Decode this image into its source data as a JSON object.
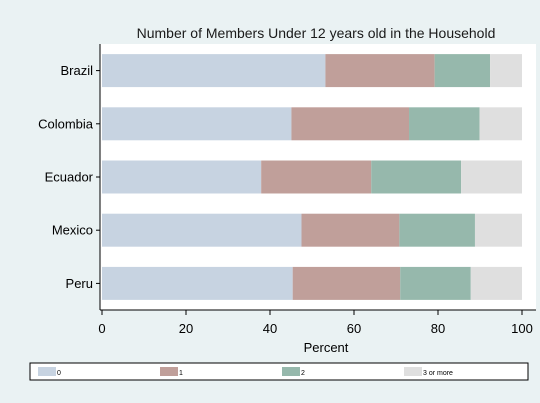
{
  "chart_data": {
    "type": "bar",
    "orientation": "horizontal",
    "stacked": true,
    "title": "Number of Members Under 12 years old in the Household",
    "xlabel": "Percent",
    "ylabel": "",
    "xlim": [
      0,
      100
    ],
    "xticks": [
      0,
      20,
      40,
      60,
      80,
      100
    ],
    "grid": false,
    "legend_position": "bottom",
    "categories": [
      "Brazil",
      "Colombia",
      "Ecuador",
      "Mexico",
      "Peru"
    ],
    "series": [
      {
        "name": "0",
        "color": "#c7d3e1",
        "values": [
          53.2,
          45.1,
          37.9,
          47.5,
          45.4
        ]
      },
      {
        "name": "1",
        "color": "#c09f9a",
        "values": [
          26.0,
          28.0,
          26.2,
          23.3,
          25.6
        ]
      },
      {
        "name": "2",
        "color": "#96b8ac",
        "values": [
          13.2,
          16.8,
          21.4,
          18.0,
          16.8
        ]
      },
      {
        "name": "3 or more",
        "color": "#dfdfdf",
        "values": [
          7.6,
          10.1,
          14.5,
          11.2,
          12.2
        ]
      }
    ]
  }
}
